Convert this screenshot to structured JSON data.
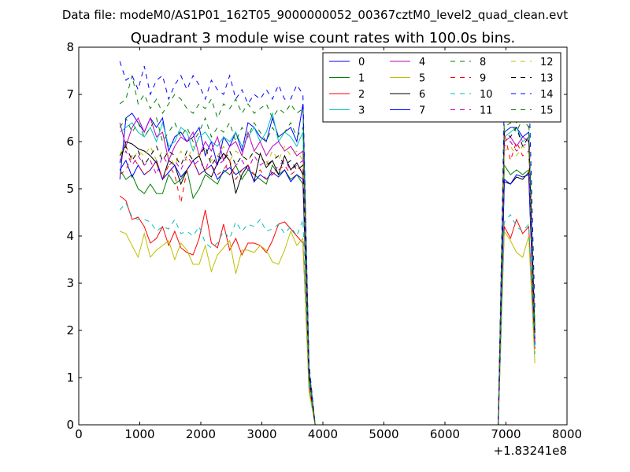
{
  "chart_data": {
    "type": "line",
    "suptitle": "Data file: modeM0/AS1P01_162T05_9000000052_00367cztM0_level2_quad_clean.evt",
    "title": "Quadrant 3 module wise count rates with 100.0s bins.",
    "xlabel": "",
    "ylabel": "",
    "x_offset_label": "+1.83241e8",
    "xlim": [
      0,
      8000
    ],
    "ylim": [
      0,
      8
    ],
    "xticks": [
      "0",
      "1000",
      "2000",
      "3000",
      "4000",
      "5000",
      "6000",
      "7000",
      "8000"
    ],
    "yticks": [
      "0",
      "1",
      "2",
      "3",
      "4",
      "5",
      "6",
      "7",
      "8"
    ],
    "grid": false,
    "legend": {
      "placement": "top-right",
      "columns": 4
    },
    "x": [
      673,
      773,
      873,
      973,
      1073,
      1173,
      1273,
      1373,
      1473,
      1573,
      1673,
      1773,
      1873,
      1973,
      2073,
      2173,
      2273,
      2373,
      2473,
      2573,
      2673,
      2773,
      2873,
      2973,
      3073,
      3173,
      3273,
      3373,
      3473,
      3573,
      3673,
      3773,
      3873,
      3973,
      4073,
      4173,
      4273,
      4373,
      4473,
      4573,
      4673,
      4773,
      4873,
      4973,
      5073,
      5173,
      5273,
      5373,
      5473,
      5573,
      5673,
      5773,
      5873,
      5973,
      6073,
      6173,
      6273,
      6373,
      6473,
      6573,
      6673,
      6773,
      6873,
      6973,
      7073,
      7173,
      7273,
      7373,
      7473
    ],
    "series": [
      {
        "name": "0",
        "color": "#0000ff",
        "dash": "solid",
        "values": [
          5.2,
          6.5,
          6.6,
          6.4,
          6.2,
          6.5,
          6.3,
          6.5,
          5.8,
          6.1,
          6.2,
          6.0,
          6.1,
          6.3,
          5.7,
          6.0,
          5.5,
          6.1,
          5.9,
          6.2,
          5.8,
          6.4,
          6.3,
          6.1,
          6.0,
          6.5,
          6.1,
          6.2,
          6.3,
          6.0,
          6.8,
          1.2,
          0,
          0,
          0,
          0,
          0,
          0,
          0,
          0,
          0,
          0,
          0,
          0,
          0,
          0,
          0,
          0,
          0,
          0,
          0,
          0,
          0,
          0,
          0,
          0,
          0,
          0,
          0,
          0,
          0,
          0,
          0,
          6.2,
          6.3,
          6.3,
          6.1,
          6.2,
          2.0
        ]
      },
      {
        "name": "1",
        "color": "#007f00",
        "dash": "solid",
        "values": [
          5.4,
          5.2,
          5.3,
          5.0,
          4.9,
          5.1,
          4.9,
          4.9,
          5.3,
          5.1,
          5.2,
          5.4,
          4.8,
          5.0,
          5.3,
          5.2,
          5.1,
          5.4,
          5.3,
          5.5,
          5.2,
          5.4,
          5.3,
          5.2,
          5.1,
          5.5,
          5.3,
          5.4,
          5.2,
          5.3,
          5.1,
          1.0,
          0,
          0,
          0,
          0,
          0,
          0,
          0,
          0,
          0,
          0,
          0,
          0,
          0,
          0,
          0,
          0,
          0,
          0,
          0,
          0,
          0,
          0,
          0,
          0,
          0,
          0,
          0,
          0,
          0,
          0,
          0,
          5.5,
          5.3,
          5.4,
          5.3,
          5.4,
          1.8
        ]
      },
      {
        "name": "2",
        "color": "#ff0000",
        "dash": "solid",
        "values": [
          4.85,
          4.75,
          4.35,
          4.4,
          4.2,
          3.85,
          3.95,
          4.2,
          3.8,
          4.1,
          3.75,
          3.65,
          3.6,
          3.95,
          4.55,
          3.85,
          3.75,
          4.25,
          3.7,
          3.95,
          3.6,
          3.85,
          3.85,
          3.8,
          3.65,
          3.9,
          4.25,
          4.3,
          4.15,
          4.0,
          3.85,
          0.8,
          0,
          0,
          0,
          0,
          0,
          0,
          0,
          0,
          0,
          0,
          0,
          0,
          0,
          0,
          0,
          0,
          0,
          0,
          0,
          0,
          0,
          0,
          0,
          0,
          0,
          0,
          0,
          0,
          0,
          0,
          0,
          4.2,
          3.95,
          4.35,
          4.05,
          4.2,
          1.6
        ]
      },
      {
        "name": "3",
        "color": "#00bfbf",
        "dash": "solid",
        "values": [
          6.2,
          6.3,
          6.4,
          6.2,
          6.1,
          6.3,
          6.0,
          6.4,
          5.9,
          6.0,
          6.3,
          6.2,
          5.8,
          6.1,
          6.2,
          6.0,
          5.9,
          6.1,
          6.0,
          6.2,
          5.9,
          6.1,
          6.3,
          6.0,
          6.2,
          6.6,
          6.0,
          6.2,
          6.1,
          5.9,
          6.2,
          1.1,
          0,
          0,
          0,
          0,
          0,
          0,
          0,
          0,
          0,
          0,
          0,
          0,
          0,
          0,
          0,
          0,
          0,
          0,
          0,
          0,
          0,
          0,
          0,
          0,
          0,
          0,
          0,
          0,
          0,
          0,
          0,
          6.1,
          6.2,
          6.3,
          6.0,
          6.1,
          1.9
        ]
      },
      {
        "name": "4",
        "color": "#bf00bf",
        "dash": "solid",
        "values": [
          6.4,
          5.9,
          6.3,
          6.5,
          6.2,
          6.5,
          6.1,
          6.2,
          5.6,
          5.9,
          6.1,
          6.0,
          6.2,
          5.7,
          6.0,
          5.8,
          6.1,
          5.6,
          5.9,
          6.0,
          5.7,
          6.2,
          5.8,
          6.0,
          5.7,
          5.9,
          6.0,
          5.8,
          5.9,
          5.7,
          5.8,
          1.0,
          0,
          0,
          0,
          0,
          0,
          0,
          0,
          0,
          0,
          0,
          0,
          0,
          0,
          0,
          0,
          0,
          0,
          0,
          0,
          0,
          0,
          0,
          0,
          0,
          0,
          0,
          0,
          0,
          0,
          0,
          0,
          6.0,
          6.1,
          5.9,
          6.1,
          6.0,
          1.8
        ]
      },
      {
        "name": "5",
        "color": "#bfbf00",
        "dash": "solid",
        "values": [
          4.1,
          4.05,
          3.8,
          3.55,
          4.05,
          3.55,
          3.7,
          3.8,
          3.9,
          3.5,
          3.85,
          3.7,
          3.4,
          3.4,
          3.8,
          3.25,
          3.6,
          3.75,
          3.9,
          3.2,
          3.7,
          3.7,
          3.65,
          3.8,
          3.7,
          3.45,
          3.4,
          3.7,
          4.1,
          3.8,
          3.95,
          0.7,
          0,
          0,
          0,
          0,
          0,
          0,
          0,
          0,
          0,
          0,
          0,
          0,
          0,
          0,
          0,
          0,
          0,
          0,
          0,
          0,
          0,
          0,
          0,
          0,
          0,
          0,
          0,
          0,
          0,
          0,
          0,
          4.1,
          3.9,
          3.65,
          3.55,
          4.0,
          1.3
        ]
      },
      {
        "name": "6",
        "color": "#000000",
        "dash": "solid",
        "values": [
          5.55,
          6.0,
          5.95,
          5.85,
          5.8,
          5.7,
          5.55,
          5.2,
          5.6,
          5.5,
          5.1,
          5.4,
          5.6,
          5.7,
          5.35,
          5.25,
          5.55,
          5.75,
          5.6,
          4.9,
          5.3,
          5.5,
          5.15,
          5.75,
          5.45,
          5.6,
          5.3,
          5.7,
          5.4,
          5.55,
          5.3,
          1.0,
          0,
          0,
          0,
          0,
          0,
          0,
          0,
          0,
          0,
          0,
          0,
          0,
          0,
          0,
          0,
          0,
          0,
          0,
          0,
          0,
          0,
          0,
          0,
          0,
          0,
          0,
          0,
          0,
          0,
          0,
          0,
          5.15,
          5.1,
          5.25,
          5.2,
          5.35,
          1.7
        ]
      },
      {
        "name": "7",
        "color": "#0000ff",
        "dash": "solid",
        "values": [
          5.4,
          5.6,
          5.25,
          5.5,
          5.3,
          5.4,
          5.6,
          5.2,
          5.35,
          5.5,
          5.25,
          5.4,
          5.6,
          5.3,
          5.4,
          5.5,
          5.2,
          5.35,
          5.45,
          5.3,
          5.4,
          5.5,
          5.15,
          5.3,
          5.2,
          5.35,
          5.25,
          5.4,
          5.15,
          5.3,
          5.2,
          1.0,
          0,
          0,
          0,
          0,
          0,
          0,
          0,
          0,
          0,
          0,
          0,
          0,
          0,
          0,
          0,
          0,
          0,
          0,
          0,
          0,
          0,
          0,
          0,
          0,
          0,
          0,
          0,
          0,
          0,
          0,
          0,
          5.2,
          5.1,
          5.3,
          5.25,
          5.3,
          1.7
        ]
      },
      {
        "name": "8",
        "color": "#007f00",
        "dash": "dashed",
        "values": [
          6.8,
          6.9,
          7.4,
          6.8,
          7.0,
          6.7,
          6.9,
          6.6,
          6.8,
          7.0,
          6.9,
          6.7,
          6.6,
          6.8,
          6.7,
          6.9,
          6.5,
          6.8,
          6.7,
          6.9,
          6.6,
          6.8,
          6.6,
          6.7,
          6.8,
          6.5,
          6.7,
          6.6,
          6.8,
          6.6,
          6.7,
          1.2,
          0,
          0,
          0,
          0,
          0,
          0,
          0,
          0,
          0,
          0,
          0,
          0,
          0,
          0,
          0,
          0,
          0,
          0,
          0,
          0,
          0,
          0,
          0,
          0,
          0,
          0,
          0,
          0,
          0,
          0,
          0,
          6.5,
          6.6,
          6.4,
          6.6,
          6.5,
          2.1
        ]
      },
      {
        "name": "9",
        "color": "#ff0000",
        "dash": "dashed",
        "values": [
          5.3,
          5.4,
          5.7,
          5.5,
          5.3,
          5.4,
          5.6,
          5.2,
          5.5,
          5.3,
          4.7,
          5.4,
          5.6,
          5.3,
          5.4,
          5.5,
          5.3,
          5.4,
          5.6,
          5.2,
          5.4,
          5.5,
          5.3,
          5.4,
          5.2,
          5.3,
          5.4,
          5.5,
          5.3,
          5.4,
          5.5,
          1.0,
          0,
          0,
          0,
          0,
          0,
          0,
          0,
          0,
          0,
          0,
          0,
          0,
          0,
          0,
          0,
          0,
          0,
          0,
          0,
          0,
          0,
          0,
          0,
          0,
          0,
          0,
          0,
          0,
          0,
          0,
          0,
          6.2,
          5.6,
          6.0,
          5.7,
          5.8,
          1.8
        ]
      },
      {
        "name": "10",
        "color": "#00bfbf",
        "dash": "dashed",
        "values": [
          4.55,
          4.7,
          4.4,
          4.35,
          4.35,
          4.3,
          4.1,
          4.2,
          4.15,
          4.35,
          4.05,
          4.1,
          4.0,
          4.2,
          3.85,
          3.75,
          3.85,
          4.1,
          3.95,
          4.3,
          4.1,
          4.25,
          4.2,
          4.35,
          4.1,
          4.15,
          4.25,
          4.05,
          4.2,
          4.0,
          4.35,
          0.8,
          0,
          0,
          0,
          0,
          0,
          0,
          0,
          0,
          0,
          0,
          0,
          0,
          0,
          0,
          0,
          0,
          0,
          0,
          0,
          0,
          0,
          0,
          0,
          0,
          0,
          0,
          0,
          0,
          0,
          0,
          0,
          4.3,
          4.45,
          4.2,
          4.1,
          4.25,
          1.5
        ]
      },
      {
        "name": "11",
        "color": "#bf00bf",
        "dash": "dashed",
        "values": [
          5.6,
          5.8,
          5.5,
          5.7,
          5.5,
          5.6,
          5.3,
          5.7,
          5.5,
          5.6,
          5.4,
          5.7,
          5.5,
          5.6,
          5.4,
          5.7,
          5.5,
          5.6,
          5.3,
          5.5,
          5.6,
          5.4,
          5.7,
          5.5,
          5.6,
          5.3,
          5.5,
          5.6,
          5.4,
          5.5,
          5.6,
          1.0,
          0,
          0,
          0,
          0,
          0,
          0,
          0,
          0,
          0,
          0,
          0,
          0,
          0,
          0,
          0,
          0,
          0,
          0,
          0,
          0,
          0,
          0,
          0,
          0,
          0,
          0,
          0,
          0,
          0,
          0,
          0,
          5.9,
          6.0,
          5.8,
          5.9,
          6.0,
          1.8
        ]
      },
      {
        "name": "12",
        "color": "#bfbf00",
        "dash": "dashed",
        "values": [
          5.75,
          5.9,
          5.6,
          5.8,
          5.7,
          5.9,
          5.6,
          5.8,
          5.7,
          5.5,
          5.8,
          5.6,
          5.9,
          5.7,
          5.8,
          5.6,
          5.7,
          5.9,
          5.6,
          5.8,
          5.7,
          5.6,
          5.8,
          5.7,
          5.5,
          5.8,
          5.6,
          5.9,
          5.7,
          5.8,
          5.6,
          1.0,
          0,
          0,
          0,
          0,
          0,
          0,
          0,
          0,
          0,
          0,
          0,
          0,
          0,
          0,
          0,
          0,
          0,
          0,
          0,
          0,
          0,
          0,
          0,
          0,
          0,
          0,
          0,
          0,
          0,
          0,
          0,
          5.8,
          5.9,
          5.7,
          5.9,
          5.8,
          1.8
        ]
      },
      {
        "name": "13",
        "color": "#000000",
        "dash": "dashed",
        "values": [
          5.7,
          5.9,
          5.6,
          5.8,
          5.5,
          5.7,
          5.9,
          5.6,
          5.8,
          5.7,
          5.5,
          5.8,
          5.6,
          5.7,
          5.9,
          5.5,
          5.7,
          5.6,
          5.8,
          5.5,
          5.7,
          5.6,
          5.8,
          5.7,
          5.5,
          5.6,
          5.7,
          5.5,
          5.6,
          5.4,
          5.5,
          1.0,
          0,
          0,
          0,
          0,
          0,
          0,
          0,
          0,
          0,
          0,
          0,
          0,
          0,
          0,
          0,
          0,
          0,
          0,
          0,
          0,
          0,
          0,
          0,
          0,
          0,
          0,
          0,
          0,
          0,
          0,
          0,
          6.2,
          6.1,
          6.3,
          5.9,
          6.1,
          1.9
        ]
      },
      {
        "name": "14",
        "color": "#0000ff",
        "dash": "dashed",
        "values": [
          7.7,
          7.3,
          7.4,
          7.1,
          7.6,
          7.0,
          7.3,
          7.4,
          6.9,
          7.2,
          7.4,
          7.1,
          7.4,
          7.2,
          6.9,
          7.3,
          7.1,
          7.0,
          7.4,
          6.9,
          7.1,
          6.8,
          7.0,
          6.9,
          7.1,
          6.9,
          7.2,
          6.9,
          6.9,
          7.2,
          7.0,
          1.3,
          0,
          0,
          0,
          0,
          0,
          0,
          0,
          0,
          0,
          0,
          0,
          0,
          0,
          0,
          0,
          0,
          0,
          0,
          0,
          0,
          0,
          0,
          0,
          0,
          0,
          0,
          0,
          0,
          0,
          0,
          0,
          6.9,
          7.4,
          7.5,
          7.0,
          7.3,
          2.4
        ]
      },
      {
        "name": "15",
        "color": "#007f00",
        "dash": "dashed",
        "values": [
          6.3,
          6.5,
          6.2,
          6.4,
          6.1,
          6.3,
          6.5,
          6.0,
          6.2,
          6.4,
          6.1,
          6.3,
          6.0,
          6.2,
          6.5,
          6.1,
          6.3,
          6.2,
          6.4,
          6.0,
          6.3,
          6.1,
          6.4,
          6.2,
          6.0,
          6.3,
          6.1,
          6.2,
          6.4,
          6.1,
          6.3,
          1.1,
          0,
          0,
          0,
          0,
          0,
          0,
          0,
          0,
          0,
          0,
          0,
          0,
          0,
          0,
          0,
          0,
          0,
          0,
          0,
          0,
          0,
          0,
          0,
          0,
          0,
          0,
          0,
          0,
          0,
          0,
          0,
          6.3,
          6.4,
          6.2,
          6.5,
          6.3,
          2.0
        ]
      }
    ]
  }
}
